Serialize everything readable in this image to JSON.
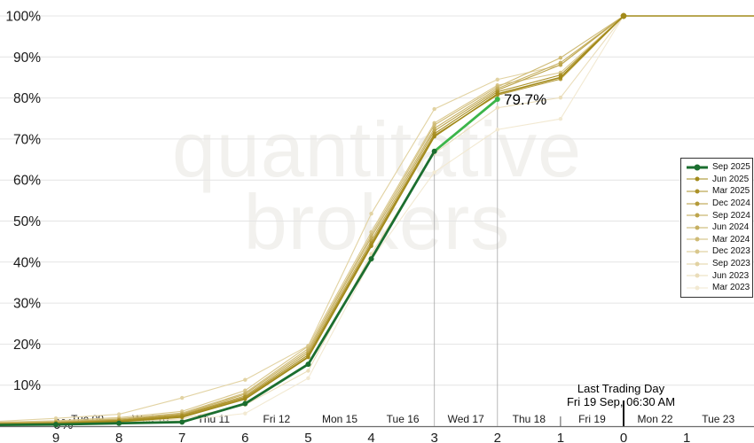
{
  "watermark": {
    "line1": "quantitative",
    "line2": "brokers"
  },
  "annotation": {
    "label": "79.7%"
  },
  "last_trading_day": {
    "line1": "Last Trading Day",
    "line2": "Fri 19 Sep, 06:30 AM"
  },
  "chart_data": {
    "type": "line",
    "title": "",
    "xlabel": "",
    "ylabel": "",
    "ylim": [
      0,
      100
    ],
    "grid": "horizontal",
    "legend_position": "right-inside",
    "y_tick_labels": [
      "0%",
      "10%",
      "20%",
      "30%",
      "40%",
      "50%",
      "60%",
      "70%",
      "80%",
      "90%",
      "100%"
    ],
    "x_days_to_expiry": [
      9,
      8,
      7,
      6,
      5,
      4,
      3,
      2,
      1,
      0
    ],
    "x_post_expiry_numbers": [
      {
        "day": -1,
        "label": "1"
      }
    ],
    "x_day_names": [
      "Tue 09",
      "Wed 10",
      "Thu 11",
      "Fri 12",
      "Mon 15",
      "Tue 16",
      "Wed 17",
      "Thu 18",
      "Fri 19",
      "Mon 22",
      "Tue 23"
    ],
    "colors": {
      "grid": "#e4e4e4",
      "axis": "#6b6b6b",
      "drop_line": "#b0b0b0",
      "tick": "#333333",
      "text": "#1a1a1a",
      "watermark": "#f2f1ee",
      "current_green": "#1b6e2f",
      "highlight_green": "#3cb549"
    },
    "marker_lines": {
      "drop_line_days": [
        3,
        2
      ],
      "last_trading_day_x": 0,
      "minor_tick_day": 1
    },
    "series": [
      {
        "name": "Sep 2025",
        "color": "#1b6e2f",
        "current": true,
        "edge_value": 0.3,
        "values": [
          0.4,
          0.7,
          1.0,
          5.5,
          15.1,
          40.8,
          67.0,
          79.7,
          null,
          null
        ],
        "final_label": "79.7%"
      },
      {
        "name": "Jun 2025",
        "color": "#a28a1a",
        "current": false,
        "edge_value": 0.5,
        "values": [
          0.6,
          1.1,
          2.2,
          6.6,
          16.8,
          43.9,
          70.6,
          81.0,
          85.0,
          100
        ]
      },
      {
        "name": "Mar 2025",
        "color": "#ab9128",
        "current": false,
        "edge_value": 0.6,
        "values": [
          0.8,
          1.4,
          2.6,
          7.1,
          17.4,
          44.6,
          71.3,
          81.5,
          85.6,
          100
        ]
      },
      {
        "name": "Dec 2024",
        "color": "#b49a39",
        "current": false,
        "edge_value": 0.5,
        "values": [
          0.7,
          1.3,
          2.4,
          6.9,
          17.0,
          44.2,
          70.9,
          80.7,
          84.6,
          100
        ]
      },
      {
        "name": "Sep 2024",
        "color": "#bda54d",
        "current": false,
        "edge_value": 0.7,
        "values": [
          0.9,
          1.5,
          2.8,
          7.4,
          17.9,
          45.2,
          72.0,
          81.9,
          88.1,
          100
        ]
      },
      {
        "name": "Jun 2024",
        "color": "#c6b061",
        "current": false,
        "edge_value": 0.8,
        "values": [
          1.0,
          1.7,
          3.0,
          7.8,
          18.4,
          46.0,
          72.6,
          82.3,
          88.6,
          100
        ]
      },
      {
        "name": "Mar 2024",
        "color": "#cfbb76",
        "current": false,
        "edge_value": 0.9,
        "values": [
          1.1,
          1.8,
          3.2,
          8.1,
          18.9,
          46.6,
          73.4,
          82.7,
          89.8,
          100
        ]
      },
      {
        "name": "Dec 2023",
        "color": "#d9c78c",
        "current": false,
        "edge_value": 1.0,
        "values": [
          1.3,
          2.1,
          3.6,
          8.7,
          19.5,
          47.3,
          73.9,
          83.1,
          86.2,
          100
        ]
      },
      {
        "name": "Sep 2023",
        "color": "#e2d3a3",
        "current": false,
        "edge_value": 1.2,
        "values": [
          1.9,
          2.9,
          6.9,
          11.3,
          19.6,
          51.8,
          77.3,
          84.5,
          88.0,
          100
        ]
      },
      {
        "name": "Jun 2023",
        "color": "#eaddba",
        "current": false,
        "edge_value": 0.3,
        "values": [
          0.5,
          0.9,
          1.8,
          5.2,
          13.5,
          42.0,
          66.5,
          77.6,
          80.1,
          100
        ]
      },
      {
        "name": "Mar 2023",
        "color": "#f2e9d2",
        "current": false,
        "edge_value": 0.2,
        "values": [
          0.3,
          0.7,
          1.4,
          3.1,
          11.7,
          40.5,
          61.9,
          72.3,
          74.9,
          100
        ]
      }
    ]
  }
}
